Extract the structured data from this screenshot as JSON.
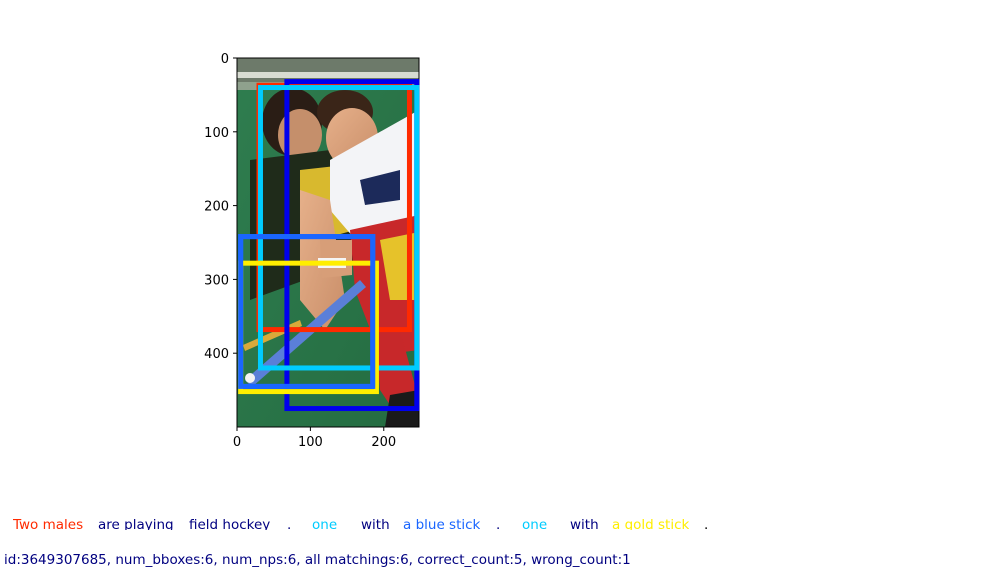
{
  "plot": {
    "x_ticks": [
      "0",
      "100",
      "200"
    ],
    "y_ticks": [
      "0",
      "100",
      "200",
      "300",
      "400"
    ],
    "x_range": [
      0,
      248
    ],
    "y_range": [
      0,
      500
    ],
    "image_content": "field hockey players photo",
    "boxes": [
      {
        "phrase_index": 0,
        "color": "#ff2a00",
        "x0": 30,
        "y0": 37,
        "x1": 235,
        "y1": 368
      },
      {
        "phrase_index": 2,
        "color": "#0000ee",
        "x0": 68,
        "y0": 32,
        "x1": 245,
        "y1": 475
      },
      {
        "phrase_index": 4,
        "color": "#00ccff",
        "x0": 32,
        "y0": 40,
        "x1": 245,
        "y1": 420
      },
      {
        "phrase_index": 5,
        "color": "#1a66ff",
        "x0": 5,
        "y0": 242,
        "x1": 185,
        "y1": 445
      },
      {
        "phrase_index": 7,
        "color": "#ffee00",
        "x0": 5,
        "y0": 278,
        "x1": 190,
        "y1": 452
      },
      {
        "phrase_index": 6,
        "color": "#1a66ff",
        "x0": 5,
        "y0": 242,
        "x1": 185,
        "y1": 445
      }
    ]
  },
  "caption": {
    "segments": [
      {
        "text": "Two males",
        "color": "#ff2a00"
      },
      {
        "text": "are playing",
        "color": "#000080"
      },
      {
        "text": "field hockey",
        "color": "#000080"
      },
      {
        "text": ".",
        "color": "#000080"
      },
      {
        "text": "one",
        "color": "#00ccff"
      },
      {
        "text": "with",
        "color": "#000080"
      },
      {
        "text": "a blue stick",
        "color": "#1a66ff"
      },
      {
        "text": ".",
        "color": "#000080"
      },
      {
        "text": "one",
        "color": "#00ccff"
      },
      {
        "text": "with",
        "color": "#000080"
      },
      {
        "text": "a gold stick",
        "color": "#ffee00"
      },
      {
        "text": ".",
        "color": "#000000"
      }
    ]
  },
  "info": {
    "text": "id:3649307685, num_bboxes:6, num_nps:6, all matchings:6, correct_count:5, wrong_count:1",
    "color": "#000080"
  }
}
